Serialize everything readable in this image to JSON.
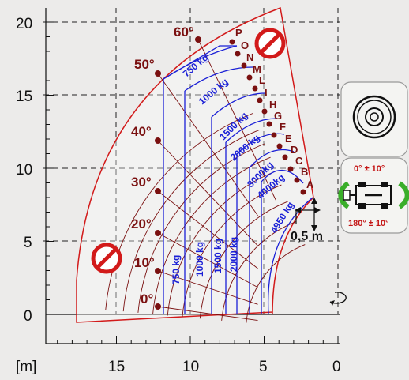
{
  "axes": {
    "unit_label": "[m]",
    "x_ticks": [
      "15",
      "10",
      "5",
      "0"
    ],
    "y_ticks": [
      "20",
      "15",
      "10",
      "5",
      "0"
    ]
  },
  "angles": [
    "0°",
    "10°",
    "20°",
    "30°",
    "40°",
    "50°",
    "60°"
  ],
  "boom_positions": [
    "A",
    "B",
    "C",
    "D",
    "E",
    "F",
    "G",
    "H",
    "I",
    "L",
    "M",
    "N",
    "O",
    "P"
  ],
  "loads_arc": [
    "750 kg",
    "1000 kg",
    "1500 kg",
    "2000 kg",
    "3000kg",
    "4000kg",
    "4950 kg"
  ],
  "loads_vertical": [
    "750 kg",
    "1000 kg",
    "1500 kg",
    "2000 kg"
  ],
  "scale_label": "0,5 m",
  "side_panel": {
    "rotation_top": "0° ± 10°",
    "rotation_bottom": "180° ± 10°"
  },
  "colors": {
    "envelope": "#d21a1a",
    "grid": "#7a1010",
    "load_lines": "#1a1fd6",
    "no_entry": "#d21a1a"
  }
}
